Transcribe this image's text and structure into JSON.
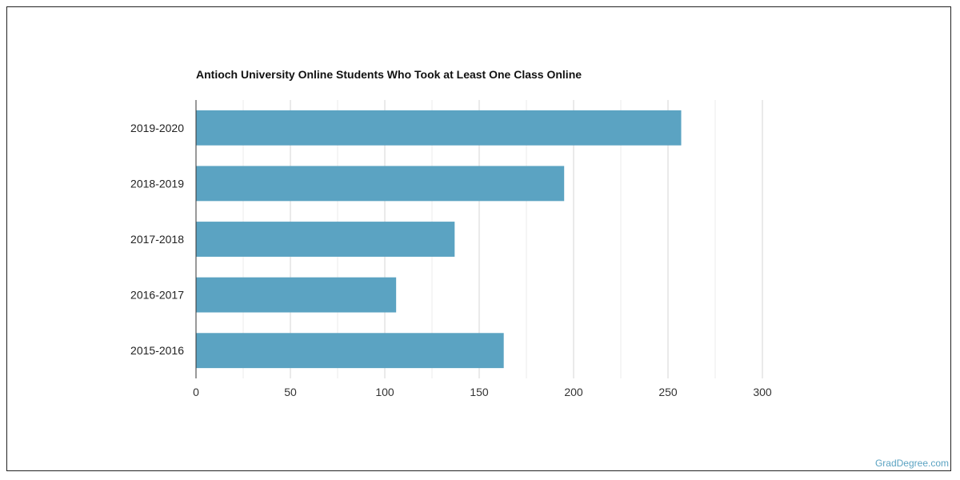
{
  "chart_data": {
    "type": "bar",
    "orientation": "horizontal",
    "title": "Antioch University Online Students Who Took at Least One Class Online",
    "categories": [
      "2019-2020",
      "2018-2019",
      "2017-2018",
      "2016-2017",
      "2015-2016"
    ],
    "values": [
      257,
      195,
      137,
      106,
      163
    ],
    "xlim": [
      0,
      300
    ],
    "xticks": [
      0,
      50,
      100,
      150,
      200,
      250,
      300
    ],
    "grid": true,
    "bar_color": "#5ba3c2",
    "xlabel": "",
    "ylabel": ""
  },
  "watermark": "GradDegree.com"
}
